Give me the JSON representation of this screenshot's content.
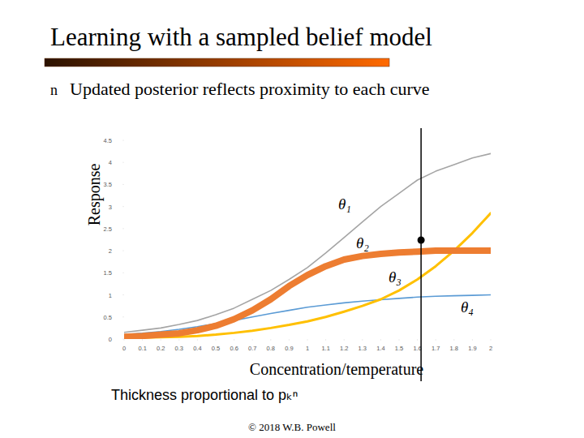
{
  "title": "Learning with a sampled belief model",
  "bullet_marker": "n",
  "bullet": "Updated posterior reflects proximity to each curve",
  "caption": "Thickness proportional to pₖⁿ",
  "footer": "© 2018 W.B. Powell",
  "chart_data": {
    "type": "line",
    "x_label": "Concentration/temperature",
    "y_label": "Response",
    "x": [
      0,
      0.1,
      0.2,
      0.3,
      0.4,
      0.5,
      0.6,
      0.7,
      0.8,
      0.9,
      1,
      1.1,
      1.2,
      1.3,
      1.4,
      1.5,
      1.6,
      1.7,
      1.8,
      1.9,
      2
    ],
    "xlim": [
      0,
      2
    ],
    "xticks": [
      0,
      0.1,
      0.2,
      0.3,
      0.4,
      0.5,
      0.6,
      0.7,
      0.8,
      0.9,
      1,
      1.1,
      1.2,
      1.3,
      1.4,
      1.5,
      1.6,
      1.7,
      1.8,
      1.9,
      2
    ],
    "ylim": [
      0,
      4.5
    ],
    "yticks": [
      0,
      0.5,
      1,
      1.5,
      2,
      2.5,
      3,
      3.5,
      4,
      4.5
    ],
    "grid": false,
    "series": [
      {
        "name": "θ₁",
        "color": "#a5a5a5",
        "values": [
          0.15,
          0.2,
          0.25,
          0.33,
          0.42,
          0.55,
          0.7,
          0.9,
          1.1,
          1.35,
          1.62,
          1.95,
          2.3,
          2.65,
          3.0,
          3.3,
          3.6,
          3.8,
          3.95,
          4.1,
          4.2
        ]
      },
      {
        "name": "θ₂",
        "color": "#ed7d31",
        "values": [
          0.05,
          0.07,
          0.1,
          0.13,
          0.2,
          0.3,
          0.45,
          0.65,
          0.9,
          1.2,
          1.45,
          1.65,
          1.8,
          1.88,
          1.93,
          1.96,
          1.98,
          2.0,
          2.0,
          2.0,
          2.0
        ]
      },
      {
        "name": "θ₃",
        "color": "#ffc000",
        "values": [
          0.02,
          0.03,
          0.04,
          0.05,
          0.07,
          0.1,
          0.14,
          0.19,
          0.25,
          0.32,
          0.4,
          0.5,
          0.62,
          0.75,
          0.9,
          1.1,
          1.35,
          1.65,
          2.0,
          2.4,
          2.85
        ]
      },
      {
        "name": "θ₄",
        "color": "#5b9bd5",
        "values": [
          0.1,
          0.13,
          0.17,
          0.22,
          0.28,
          0.35,
          0.42,
          0.5,
          0.58,
          0.65,
          0.72,
          0.77,
          0.82,
          0.86,
          0.89,
          0.92,
          0.95,
          0.97,
          0.98,
          0.99,
          1.0
        ]
      }
    ],
    "observation": {
      "x": 1.62,
      "y": 2.24
    }
  }
}
